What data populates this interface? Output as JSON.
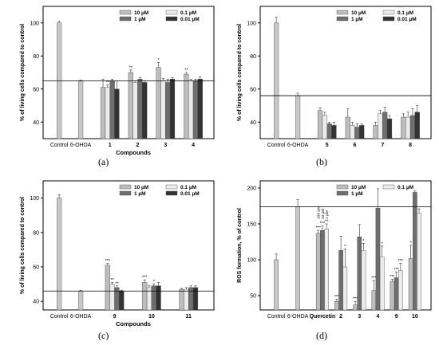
{
  "figure": {
    "captions": [
      "(a)",
      "(b)",
      "(c)",
      "(d)"
    ]
  },
  "legend_labels": [
    "10 µM",
    "0.1 µM",
    "1 µM",
    "0.01 µM"
  ],
  "colors": {
    "10 µM": "#bdbdbd",
    "0.1 µM": "#ececec",
    "1 µM": "#6e6e6e",
    "0.01 µM": "#333333",
    "control": "#c8c8c8"
  },
  "chart_data": [
    {
      "panel": "(a)",
      "type": "bar",
      "ylabel": "% of living cells compared to control",
      "xlabel": "Compounds",
      "ylim": [
        30,
        110
      ],
      "yticks": [
        40,
        60,
        80,
        100
      ],
      "reference_line": 65,
      "legend_placement": "top-right",
      "categories": [
        {
          "label": "Control",
          "bars": [
            {
              "series": "control",
              "value": 100,
              "err": 1
            }
          ]
        },
        {
          "label": "6-OHDA",
          "bars": [
            {
              "series": "control",
              "value": 65,
              "err": 0.5
            }
          ]
        },
        {
          "label": "1",
          "bars": [
            {
              "series": "10 µM",
              "value": 61,
              "err": 5
            },
            {
              "series": "0.1 µM",
              "value": 61,
              "err": 1.5,
              "sig": "**"
            },
            {
              "series": "1 µM",
              "value": 65,
              "err": 1
            },
            {
              "series": "0.01 µM",
              "value": 60,
              "err": 5
            }
          ]
        },
        {
          "label": "2",
          "bars": [
            {
              "series": "10 µM",
              "value": 70,
              "err": 1.5,
              "sig": "**"
            },
            {
              "series": "0.1 µM",
              "value": 64,
              "err": 1
            },
            {
              "series": "1 µM",
              "value": 66,
              "err": 1
            },
            {
              "series": "0.01 µM",
              "value": 64,
              "err": 1
            }
          ]
        },
        {
          "label": "3",
          "bars": [
            {
              "series": "10 µM",
              "value": 73,
              "err": 3,
              "sig": "*"
            },
            {
              "series": "0.1 µM",
              "value": 65,
              "err": 1.5
            },
            {
              "series": "1 µM",
              "value": 64,
              "err": 2
            },
            {
              "series": "0.01 µM",
              "value": 66,
              "err": 1
            }
          ]
        },
        {
          "label": "4",
          "bars": [
            {
              "series": "10 µM",
              "value": 69,
              "err": 1,
              "sig": "**"
            },
            {
              "series": "0.1 µM",
              "value": 65,
              "err": 1
            },
            {
              "series": "1 µM",
              "value": 65,
              "err": 1
            },
            {
              "series": "0.01 µM",
              "value": 66,
              "err": 1.5
            }
          ]
        }
      ]
    },
    {
      "panel": "(b)",
      "type": "bar",
      "ylabel": "% of living cells compared to control",
      "xlabel": "",
      "ylim": [
        30,
        110
      ],
      "yticks": [
        40,
        60,
        80,
        100
      ],
      "reference_line": 56,
      "legend_placement": "top-right",
      "categories": [
        {
          "label": "Control",
          "bars": [
            {
              "series": "control",
              "value": 100,
              "err": 3.5
            }
          ]
        },
        {
          "label": "6-OHDA",
          "bars": [
            {
              "series": "control",
              "value": 56,
              "err": 1.5
            }
          ]
        },
        {
          "label": "5",
          "bars": [
            {
              "series": "10 µM",
              "value": 47,
              "err": 1.5
            },
            {
              "series": "0.1 µM",
              "value": 44,
              "err": 2
            },
            {
              "series": "1 µM",
              "value": 39,
              "err": 1
            },
            {
              "series": "0.01 µM",
              "value": 38,
              "err": 2
            }
          ]
        },
        {
          "label": "6",
          "bars": [
            {
              "series": "10 µM",
              "value": 43,
              "err": 5
            },
            {
              "series": "0.1 µM",
              "value": 38,
              "err": 2
            },
            {
              "series": "1 µM",
              "value": 37,
              "err": 2
            },
            {
              "series": "0.01 µM",
              "value": 38,
              "err": 1
            }
          ]
        },
        {
          "label": "7",
          "bars": [
            {
              "series": "10 µM",
              "value": 38,
              "err": 2
            },
            {
              "series": "0.1 µM",
              "value": 45,
              "err": 2
            },
            {
              "series": "1 µM",
              "value": 46,
              "err": 3
            },
            {
              "series": "0.01 µM",
              "value": 42,
              "err": 2
            }
          ]
        },
        {
          "label": "8",
          "bars": [
            {
              "series": "10 µM",
              "value": 43,
              "err": 2
            },
            {
              "series": "0.1 µM",
              "value": 43,
              "err": 3
            },
            {
              "series": "1 µM",
              "value": 44,
              "err": 4
            },
            {
              "series": "0.01 µM",
              "value": 46,
              "err": 4
            }
          ]
        }
      ]
    },
    {
      "panel": "(c)",
      "type": "bar",
      "ylabel": "% of living cells compared to control",
      "xlabel": "Compounds",
      "ylim": [
        35,
        110
      ],
      "yticks": [
        40,
        60,
        80,
        100
      ],
      "reference_line": 46,
      "legend_placement": "top-right",
      "categories": [
        {
          "label": "Control",
          "bars": [
            {
              "series": "control",
              "value": 100,
              "err": 2
            }
          ]
        },
        {
          "label": "6-OHDA",
          "bars": [
            {
              "series": "control",
              "value": 46,
              "err": 0.5
            }
          ]
        },
        {
          "label": "9",
          "bars": [
            {
              "series": "10 µM",
              "value": 61,
              "err": 1,
              "sig": "***"
            },
            {
              "series": "0.1 µM",
              "value": 50,
              "err": 1,
              "sig": "**"
            },
            {
              "series": "1 µM",
              "value": 48,
              "err": 1,
              "sig": "**"
            },
            {
              "series": "0.01 µM",
              "value": 46,
              "err": 0.5
            }
          ]
        },
        {
          "label": "10",
          "bars": [
            {
              "series": "10 µM",
              "value": 51,
              "err": 1.5,
              "sig": "***"
            },
            {
              "series": "0.1 µM",
              "value": 48,
              "err": 1
            },
            {
              "series": "1 µM",
              "value": 49,
              "err": 1,
              "sig": "*"
            },
            {
              "series": "0.01 µM",
              "value": 49,
              "err": 2
            }
          ]
        },
        {
          "label": "11",
          "bars": [
            {
              "series": "10 µM",
              "value": 47,
              "err": 0.5
            },
            {
              "series": "0.1 µM",
              "value": 47,
              "err": 1
            },
            {
              "series": "1 µM",
              "value": 48,
              "err": 1
            },
            {
              "series": "0.01 µM",
              "value": 48,
              "err": 1
            }
          ]
        }
      ]
    },
    {
      "panel": "(d)",
      "type": "bar",
      "ylabel": "ROS formation, % of control",
      "xlabel": "",
      "ylim": [
        30,
        210
      ],
      "yticks": [
        50,
        100,
        150,
        200
      ],
      "reference_line": 174,
      "legend_placement": "top-right",
      "legend_labels": [
        "10 µM",
        "0.1 µM",
        "1 µM"
      ],
      "vertical_labels": [
        "100 µM",
        "10 µM",
        "1 µM"
      ],
      "categories": [
        {
          "label": "Control",
          "bars": [
            {
              "series": "control",
              "value": 100,
              "err": 8
            }
          ]
        },
        {
          "label": "6-OHDA",
          "bars": [
            {
              "series": "control",
              "value": 174,
              "err": 10
            }
          ]
        },
        {
          "label": "Quercetin",
          "bars": [
            {
              "series": "10 µM",
              "value": 137,
              "err": 4,
              "sig": "***"
            },
            {
              "series": "1 µM",
              "value": 141,
              "err": 6,
              "sig": "***"
            },
            {
              "series": "0.1 µM",
              "value": 143,
              "err": 7,
              "sig": "**"
            }
          ]
        },
        {
          "label": "2",
          "bars": [
            {
              "series": "10 µM",
              "value": 42,
              "err": 3,
              "sig": "***"
            },
            {
              "series": "1 µM",
              "value": 113,
              "err": 20
            },
            {
              "series": "0.1 µM",
              "value": 90,
              "err": 25,
              "sig": "*"
            }
          ]
        },
        {
          "label": "3",
          "bars": [
            {
              "series": "10 µM",
              "value": 37,
              "err": 5,
              "sig": "***"
            },
            {
              "series": "1 µM",
              "value": 132,
              "err": 17
            },
            {
              "series": "0.1 µM",
              "value": 113,
              "err": 10,
              "sig": "*"
            }
          ]
        },
        {
          "label": "4",
          "bars": [
            {
              "series": "10 µM",
              "value": 57,
              "err": 14,
              "sig": "***"
            },
            {
              "series": "1 µM",
              "value": 172,
              "err": 27
            },
            {
              "series": "0.1 µM",
              "value": 104,
              "err": 15,
              "sig": "*"
            }
          ]
        },
        {
          "label": "9",
          "bars": [
            {
              "series": "10 µM",
              "value": 70,
              "err": 3,
              "sig": "***"
            },
            {
              "series": "1 µM",
              "value": 75,
              "err": 8,
              "sig": "***"
            },
            {
              "series": "0.1 µM",
              "value": 85,
              "err": 10,
              "sig": "***"
            }
          ]
        },
        {
          "label": "10",
          "bars": [
            {
              "series": "10 µM",
              "value": 102,
              "err": 18,
              "sig": "*"
            },
            {
              "series": "1 µM",
              "value": 194,
              "err": 2
            },
            {
              "series": "0.1 µM",
              "value": 165,
              "err": 6
            }
          ]
        }
      ]
    }
  ]
}
